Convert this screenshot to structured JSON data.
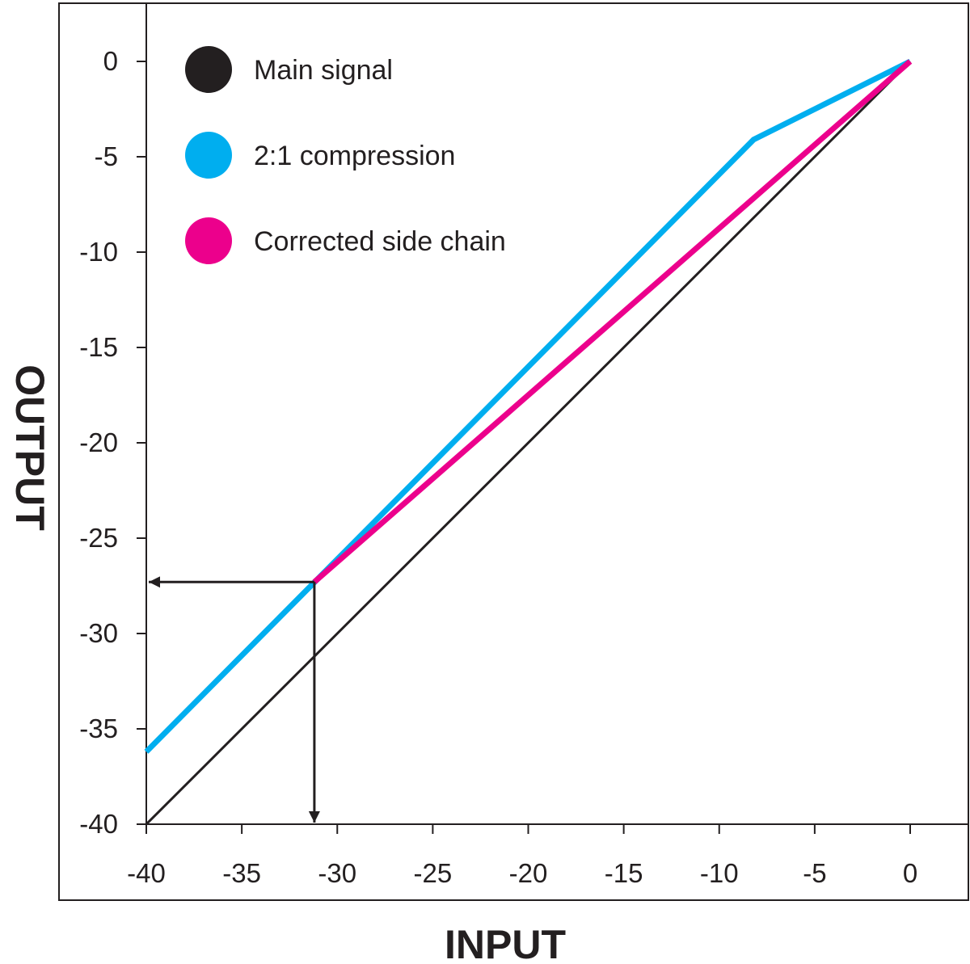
{
  "chart_data": {
    "type": "line",
    "title": "",
    "xlabel": "INPUT",
    "ylabel": "OUTPUT",
    "xlim": [
      -40,
      0
    ],
    "ylim": [
      -40,
      0
    ],
    "x_ticks": [
      "-40",
      "-35",
      "-30",
      "-25",
      "-20",
      "-15",
      "-10",
      "-5",
      "0"
    ],
    "y_ticks": [
      "0",
      "-5",
      "-10",
      "-15",
      "-20",
      "-25",
      "-30",
      "-35",
      "-40"
    ],
    "x_tick_values": [
      -40,
      -35,
      -30,
      -25,
      -20,
      -15,
      -10,
      -5,
      0
    ],
    "y_tick_values": [
      0,
      -5,
      -10,
      -15,
      -20,
      -25,
      -30,
      -35,
      -40
    ],
    "grid": false,
    "legend_position": "top-left",
    "series": [
      {
        "name": "Main signal",
        "color": "#231f20",
        "points": [
          [
            -40,
            -40
          ],
          [
            0,
            0
          ]
        ]
      },
      {
        "name": "2:1 compression",
        "color": "#00aeef",
        "points": [
          [
            -40,
            -36.2
          ],
          [
            -8.2,
            -4.1
          ],
          [
            0,
            0
          ]
        ]
      },
      {
        "name": "Corrected side chain",
        "color": "#ec008c",
        "points": [
          [
            -31.2,
            -27.3
          ],
          [
            0,
            0
          ]
        ]
      }
    ],
    "annotations": [
      {
        "type": "arrow-to-y-axis",
        "from": [
          -31.2,
          -27.3
        ],
        "to": [
          -40,
          -27.3
        ],
        "color": "#231f20"
      },
      {
        "type": "arrow-to-x-axis",
        "from": [
          -31.2,
          -27.3
        ],
        "to": [
          -31.2,
          -40
        ],
        "color": "#231f20"
      }
    ]
  }
}
